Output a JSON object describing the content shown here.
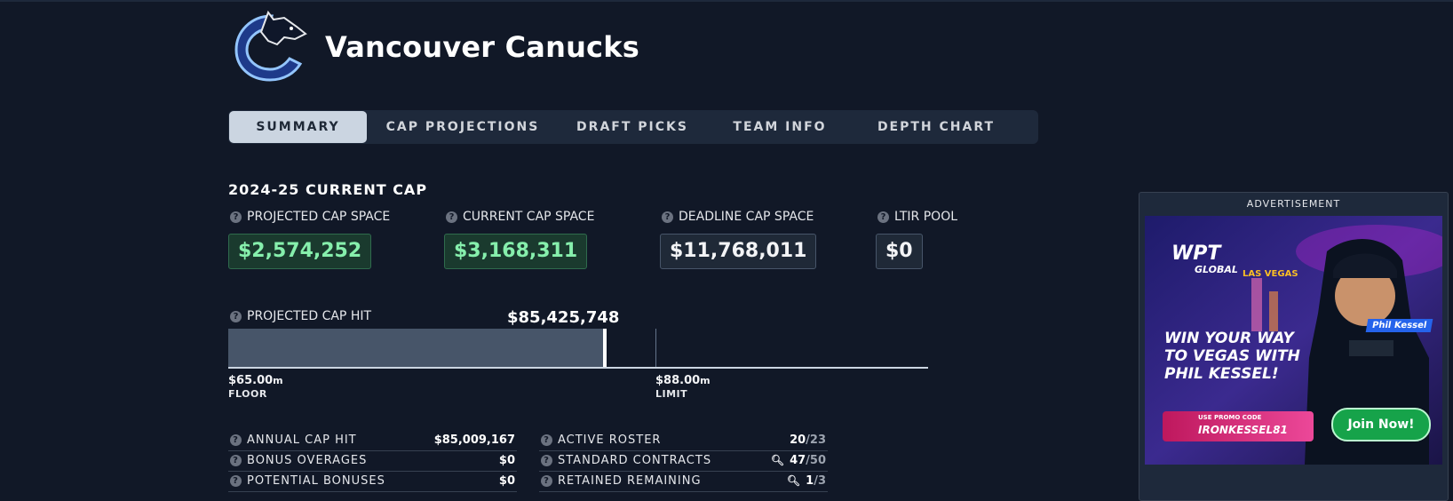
{
  "header": {
    "team_name": "Vancouver Canucks"
  },
  "tabs": [
    {
      "label": "SUMMARY",
      "active": true
    },
    {
      "label": "CAP PROJECTIONS",
      "active": false
    },
    {
      "label": "DRAFT PICKS",
      "active": false
    },
    {
      "label": "TEAM INFO",
      "active": false
    },
    {
      "label": "DEPTH CHART",
      "active": false
    }
  ],
  "summary": {
    "title": "2024-25 CURRENT CAP",
    "stats": [
      {
        "label": "PROJECTED CAP SPACE",
        "value": "$2,574,252",
        "style": "green"
      },
      {
        "label": "CURRENT CAP SPACE",
        "value": "$3,168,311",
        "style": "green"
      },
      {
        "label": "DEADLINE CAP SPACE",
        "value": "$11,768,011",
        "style": "plain"
      },
      {
        "label": "LTIR POOL",
        "value": "$0",
        "style": "plain"
      }
    ],
    "cap_bar": {
      "label": "PROJECTED CAP HIT",
      "value": "$85,425,748",
      "floor_value": "$65.00",
      "floor_unit": "m",
      "floor_label": "FLOOR",
      "limit_value": "$88.00",
      "limit_unit": "m",
      "limit_label": "LIMIT"
    },
    "left_rows": [
      {
        "label": "ANNUAL CAP HIT",
        "value": "$85,009,167"
      },
      {
        "label": "BONUS OVERAGES",
        "value": "$0"
      },
      {
        "label": "POTENTIAL BONUSES",
        "value": "$0"
      }
    ],
    "right_rows": [
      {
        "label": "ACTIVE ROSTER",
        "value": "20",
        "denominator": "/23"
      },
      {
        "label": "STANDARD CONTRACTS",
        "value": "47",
        "denominator": "/50"
      },
      {
        "label": "RETAINED REMAINING",
        "value": "1",
        "denominator": "/3"
      }
    ]
  },
  "ad": {
    "title": "ADVERTISEMENT",
    "brand": "WPT",
    "brand_sub": "GLOBAL",
    "vegas": "LAS VEGAS",
    "headline_1": "WIN YOUR WAY",
    "headline_2": "TO VEGAS WITH",
    "headline_3": "PHIL KESSEL!",
    "name_tag": "Phil Kessel",
    "promo_small": "USE PROMO CODE",
    "promo_code": "IRONKESSEL81",
    "cta": "Join Now!"
  },
  "colors": {
    "background": "#111827",
    "positive": "#86efac",
    "tab_active": "#cbd5e1"
  },
  "icons": [
    "team-logo-icon",
    "help-icon",
    "magnifier-icon"
  ]
}
